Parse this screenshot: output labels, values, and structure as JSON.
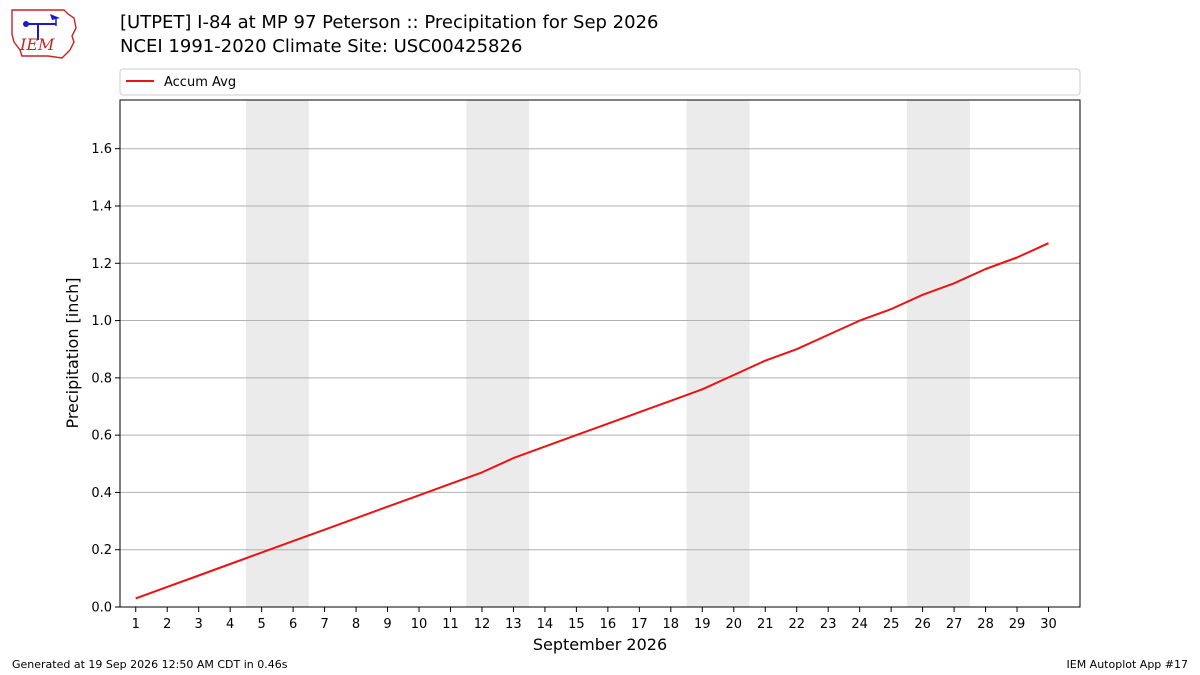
{
  "header": {
    "title_line1": "[UTPET] I-84 at MP 97 Peterson :: Precipitation for Sep 2026",
    "title_line2": "NCEI 1991-2020 Climate Site: USC00425826"
  },
  "logo": {
    "text": "IEM"
  },
  "footer": {
    "generated": "Generated at 19 Sep 2026 12:50 AM CDT in 0.46s",
    "app": "IEM Autoplot App #17"
  },
  "colors": {
    "line": "#ee1111",
    "weekend_band": "#ebebeb",
    "grid": "#b0b0b0",
    "logo_blue": "#1a1acc",
    "logo_red": "#cc2222"
  },
  "chart_data": {
    "type": "line",
    "xlabel": "September 2026",
    "ylabel": "Precipitation [inch]",
    "x": [
      1,
      2,
      3,
      4,
      5,
      6,
      7,
      8,
      9,
      10,
      11,
      12,
      13,
      14,
      15,
      16,
      17,
      18,
      19,
      20,
      21,
      22,
      23,
      24,
      25,
      26,
      27,
      28,
      29,
      30
    ],
    "xlim": [
      0.5,
      31.0
    ],
    "ylim": [
      0,
      1.77
    ],
    "yticks": [
      "0.0",
      "0.2",
      "0.4",
      "0.6",
      "0.8",
      "1.0",
      "1.2",
      "1.4",
      "1.6"
    ],
    "grid": "horizontal",
    "legend_position": "top, above plot",
    "weekend_days": [
      [
        5,
        6
      ],
      [
        12,
        13
      ],
      [
        19,
        20
      ],
      [
        26,
        27
      ]
    ],
    "series": [
      {
        "name": "Accum Avg",
        "values": [
          0.03,
          0.07,
          0.11,
          0.15,
          0.19,
          0.23,
          0.27,
          0.31,
          0.35,
          0.39,
          0.43,
          0.47,
          0.52,
          0.56,
          0.6,
          0.64,
          0.68,
          0.72,
          0.76,
          0.81,
          0.86,
          0.9,
          0.95,
          1.0,
          1.04,
          1.09,
          1.13,
          1.18,
          1.22,
          1.27
        ]
      }
    ]
  }
}
